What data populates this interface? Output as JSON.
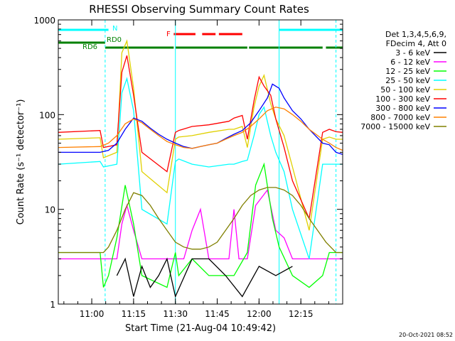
{
  "chart_data": {
    "type": "line",
    "title": "RHESSI Observing Summary Count Rates",
    "xlabel": "Start Time (21-Aug-04 10:49:42)",
    "ylabel": "Count Rate (s⁻¹ detector⁻¹)",
    "yscale": "log",
    "ylim": [
      1,
      1000
    ],
    "xlim_minutes": [
      10.8,
      12.5
    ],
    "x_ticks": [
      {
        "t": 11.0,
        "label": "11:00"
      },
      {
        "t": 11.25,
        "label": "11:15"
      },
      {
        "t": 11.5,
        "label": "11:30"
      },
      {
        "t": 11.75,
        "label": "11:45"
      },
      {
        "t": 12.0,
        "label": "12:00"
      },
      {
        "t": 12.25,
        "label": "12:15"
      }
    ],
    "y_ticks": [
      {
        "v": 1,
        "label": "1"
      },
      {
        "v": 10,
        "label": "10"
      },
      {
        "v": 100,
        "label": "100"
      },
      {
        "v": 1000,
        "label": "1000"
      }
    ],
    "legend": {
      "position": "right",
      "header": [
        "Det 1,3,4,5,6,9,",
        "FDecim 4, Att 0"
      ],
      "entries": [
        {
          "label": "3 - 6 keV",
          "color": "#000000"
        },
        {
          "label": "6 - 12 keV",
          "color": "#ff00ff"
        },
        {
          "label": "12 - 25 keV",
          "color": "#00ff00"
        },
        {
          "label": "25 - 50 keV",
          "color": "#00ffff"
        },
        {
          "label": "50 - 100 keV",
          "color": "#e0d000"
        },
        {
          "label": "100 - 300 keV",
          "color": "#ff0000"
        },
        {
          "label": "300 - 800 keV",
          "color": "#0000ff"
        },
        {
          "label": "800 - 7000 keV",
          "color": "#ff8000"
        },
        {
          "label": "7000 - 15000 keV",
          "color": "#808000"
        }
      ]
    },
    "flags": [
      {
        "name": "N",
        "color": "#00ffff",
        "segments": [
          [
            10.8,
            11.1
          ],
          [
            12.12,
            12.5
          ]
        ]
      },
      {
        "name": "F",
        "color": "#ff0000",
        "segments": [
          [
            11.49,
            11.62
          ],
          [
            11.66,
            11.74
          ],
          [
            11.76,
            11.9
          ]
        ]
      },
      {
        "name": "RD0",
        "color": "#008000",
        "segments": [
          [
            10.8,
            11.08
          ]
        ]
      },
      {
        "name": "RD6",
        "color": "#008000",
        "segments": [
          [
            11.08,
            11.49
          ],
          [
            11.5,
            11.93
          ],
          [
            11.94,
            12.38
          ],
          [
            12.4,
            12.5
          ]
        ]
      }
    ],
    "dashed_markers_hours": [
      11.08,
      12.46
    ],
    "solid_markers_hours": [
      11.5,
      12.12
    ],
    "series": [
      {
        "name": "6 - 12 keV",
        "color": "#ff00ff",
        "x": [
          10.8,
          11.05,
          11.07,
          11.15,
          11.18,
          11.21,
          11.25,
          11.3,
          11.45,
          11.5,
          11.55,
          11.6,
          11.65,
          11.7,
          11.82,
          11.85,
          11.88,
          11.93,
          11.98,
          12.05,
          12.1,
          12.15,
          12.2,
          12.3,
          12.38,
          12.42,
          12.46,
          12.5
        ],
        "y": [
          3,
          3,
          3,
          3,
          7,
          11,
          6,
          3,
          3,
          3,
          3,
          6,
          10,
          3,
          3,
          10,
          3,
          3,
          11,
          16,
          6,
          5,
          3,
          3,
          3,
          3,
          3,
          3
        ]
      },
      {
        "name": "12 - 25 keV",
        "color": "#00ff00",
        "x": [
          10.8,
          11.05,
          11.07,
          11.1,
          11.15,
          11.2,
          11.25,
          11.3,
          11.45,
          11.5,
          11.52,
          11.6,
          11.7,
          11.82,
          11.85,
          11.93,
          11.98,
          12.03,
          12.08,
          12.12,
          12.2,
          12.3,
          12.38,
          12.42,
          12.46,
          12.5
        ],
        "y": [
          3.5,
          3.5,
          1.5,
          2,
          5,
          18,
          7,
          2,
          1.5,
          3.5,
          2,
          3,
          2,
          2,
          2,
          3.5,
          18,
          30,
          8,
          4,
          2,
          1.5,
          2,
          3.5,
          3.5,
          3.5
        ]
      },
      {
        "name": "25 - 50 keV",
        "color": "#00ffff",
        "x": [
          10.8,
          11.05,
          11.07,
          11.15,
          11.18,
          11.21,
          11.25,
          11.3,
          11.45,
          11.5,
          11.52,
          11.6,
          11.7,
          11.82,
          11.85,
          11.9,
          11.93,
          11.97,
          12.0,
          12.03,
          12.07,
          12.1,
          12.15,
          12.2,
          12.3,
          12.38,
          12.42,
          12.46,
          12.5
        ],
        "y": [
          30,
          32,
          28,
          30,
          170,
          240,
          110,
          10,
          7,
          32,
          34,
          30,
          28,
          30,
          30,
          32,
          33,
          60,
          100,
          120,
          60,
          40,
          25,
          10,
          3,
          30,
          30,
          30,
          30
        ]
      },
      {
        "name": "50 - 100 keV",
        "color": "#e0d000",
        "x": [
          10.8,
          11.05,
          11.07,
          11.15,
          11.18,
          11.21,
          11.25,
          11.3,
          11.45,
          11.5,
          11.52,
          11.6,
          11.7,
          11.82,
          11.85,
          11.9,
          11.93,
          11.97,
          12.0,
          12.03,
          12.07,
          12.1,
          12.15,
          12.2,
          12.3,
          12.38,
          12.42,
          12.46,
          12.5
        ],
        "y": [
          55,
          57,
          35,
          40,
          450,
          600,
          190,
          25,
          15,
          55,
          58,
          60,
          65,
          70,
          70,
          75,
          45,
          120,
          200,
          260,
          130,
          90,
          60,
          28,
          6,
          55,
          58,
          55,
          55
        ]
      },
      {
        "name": "100 - 300 keV",
        "color": "#ff0000",
        "x": [
          10.8,
          11.05,
          11.07,
          11.15,
          11.18,
          11.21,
          11.25,
          11.3,
          11.45,
          11.5,
          11.52,
          11.6,
          11.7,
          11.82,
          11.85,
          11.9,
          11.93,
          11.97,
          12.0,
          12.03,
          12.07,
          12.1,
          12.15,
          12.2,
          12.3,
          12.38,
          12.42,
          12.46,
          12.5
        ],
        "y": [
          65,
          68,
          45,
          48,
          280,
          420,
          160,
          40,
          25,
          65,
          68,
          75,
          78,
          85,
          92,
          98,
          55,
          140,
          250,
          200,
          160,
          90,
          45,
          20,
          8,
          65,
          70,
          66,
          65
        ]
      },
      {
        "name": "300 - 800 keV",
        "color": "#0000ff",
        "x": [
          10.8,
          11.05,
          11.1,
          11.15,
          11.2,
          11.25,
          11.3,
          11.35,
          11.4,
          11.45,
          11.5,
          11.55,
          11.6,
          11.65,
          11.7,
          11.75,
          11.8,
          11.85,
          11.9,
          11.95,
          12.0,
          12.05,
          12.08,
          12.12,
          12.15,
          12.2,
          12.25,
          12.3,
          12.38,
          12.42,
          12.46,
          12.5
        ],
        "y": [
          40,
          40,
          42,
          50,
          70,
          92,
          85,
          72,
          62,
          55,
          50,
          46,
          44,
          46,
          48,
          50,
          56,
          62,
          68,
          82,
          110,
          150,
          210,
          190,
          150,
          110,
          90,
          70,
          50,
          48,
          40,
          38
        ]
      },
      {
        "name": "800 - 7000 keV",
        "color": "#ff8000",
        "x": [
          10.8,
          11.05,
          11.1,
          11.15,
          11.2,
          11.25,
          11.3,
          11.35,
          11.4,
          11.45,
          11.5,
          11.55,
          11.6,
          11.65,
          11.7,
          11.75,
          11.8,
          11.85,
          11.9,
          11.95,
          12.0,
          12.05,
          12.1,
          12.15,
          12.2,
          12.25,
          12.3,
          12.38,
          12.42,
          12.46,
          12.5
        ],
        "y": [
          45,
          46,
          50,
          60,
          80,
          90,
          82,
          70,
          60,
          52,
          48,
          45,
          44,
          46,
          48,
          50,
          55,
          60,
          65,
          75,
          90,
          110,
          120,
          115,
          100,
          85,
          70,
          55,
          50,
          45,
          42
        ]
      },
      {
        "name": "7000 - 15000 keV",
        "color": "#808000",
        "x": [
          10.8,
          11.07,
          11.1,
          11.15,
          11.2,
          11.25,
          11.3,
          11.35,
          11.4,
          11.45,
          11.5,
          11.55,
          11.6,
          11.65,
          11.7,
          11.75,
          11.8,
          11.85,
          11.9,
          11.95,
          12.0,
          12.05,
          12.1,
          12.15,
          12.2,
          12.25,
          12.3,
          12.35,
          12.4,
          12.46,
          12.5
        ],
        "y": [
          3.5,
          3.5,
          4,
          6,
          10,
          15,
          14,
          11,
          8,
          6,
          4.5,
          4,
          3.8,
          3.8,
          4,
          4.5,
          6,
          8,
          11,
          14,
          16,
          17,
          17,
          16,
          14,
          11,
          8,
          6,
          4.5,
          3.5,
          3.5
        ]
      },
      {
        "name": "3 - 6 keV",
        "color": "#000000",
        "x": [
          11.15,
          11.2,
          11.25,
          11.3,
          11.35,
          11.4,
          11.45,
          11.5,
          11.6,
          11.7,
          11.8,
          11.9,
          12.0,
          12.1,
          12.2
        ],
        "y": [
          2,
          3,
          1.2,
          2.5,
          1.5,
          2,
          3,
          1.2,
          3,
          3,
          2,
          1.2,
          2.5,
          2,
          2.5
        ]
      }
    ]
  },
  "footer_timestamp": "20-Oct-2021 08:52"
}
